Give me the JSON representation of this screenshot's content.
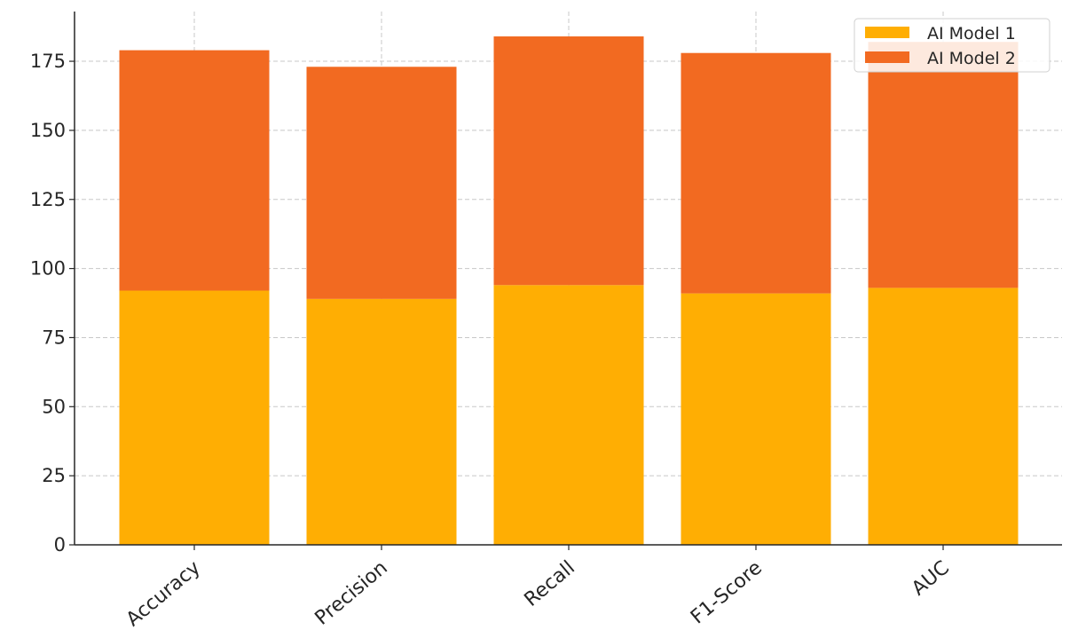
{
  "chart_data": {
    "type": "bar",
    "stacked": true,
    "title": "",
    "xlabel": "",
    "ylabel": "",
    "categories": [
      "Accuracy",
      "Precision",
      "Recall",
      "F1-Score",
      "AUC"
    ],
    "series": [
      {
        "name": "AI Model 1",
        "values": [
          92,
          89,
          94,
          91,
          93
        ],
        "color": "#FFAE03"
      },
      {
        "name": "AI Model 2",
        "values": [
          87,
          84,
          90,
          87,
          89
        ],
        "color": "#F26A21"
      }
    ],
    "ylim": [
      0,
      193
    ],
    "yticks": [
      0,
      25,
      50,
      75,
      100,
      125,
      150,
      175
    ],
    "grid": true,
    "legend_position": "top-right"
  }
}
